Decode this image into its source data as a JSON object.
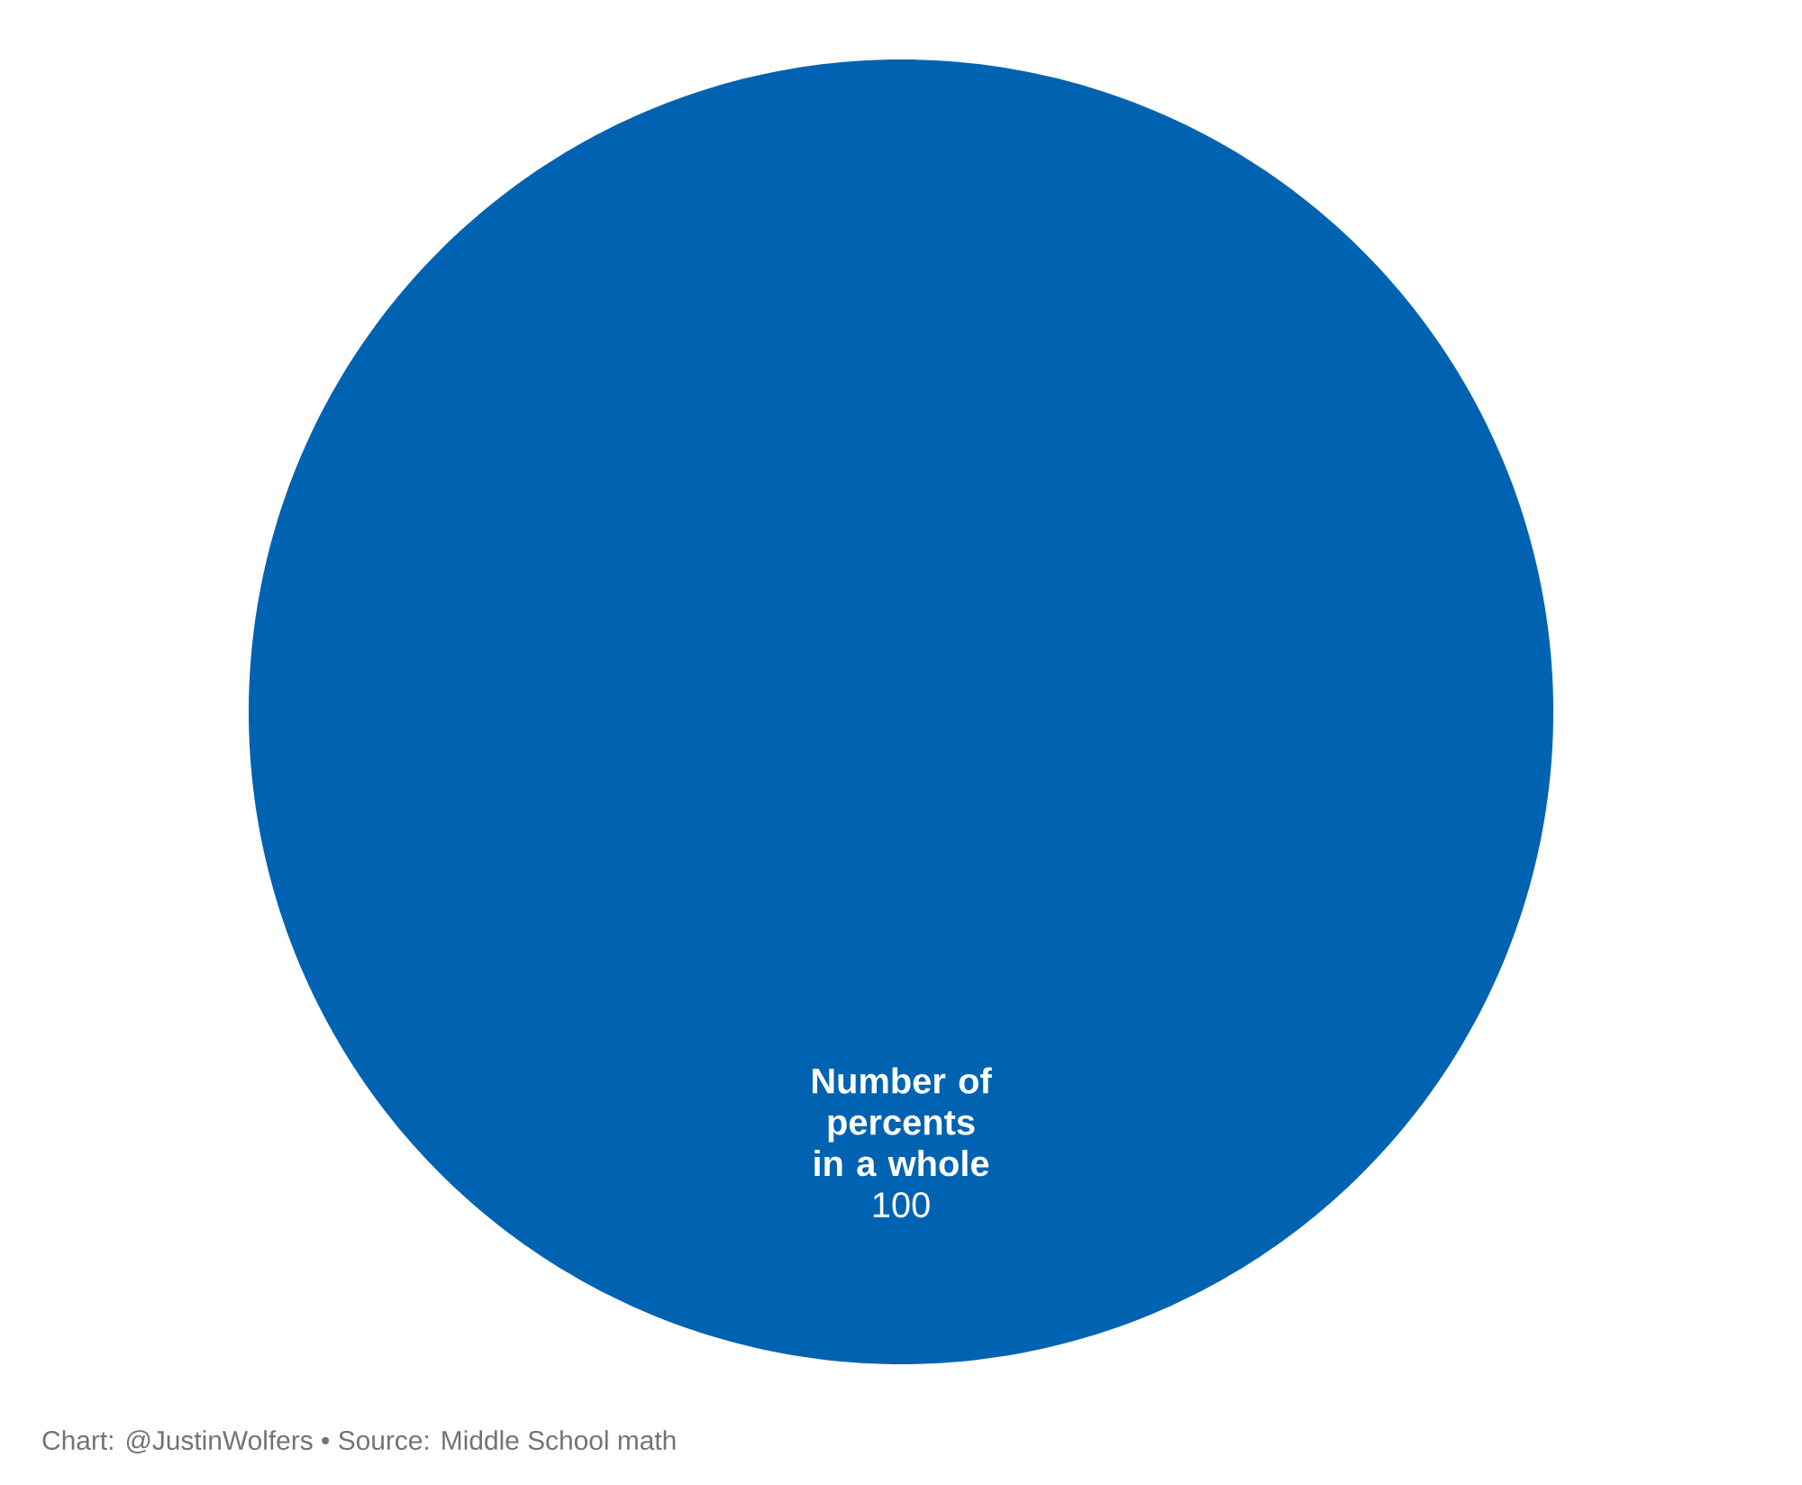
{
  "chart_data": {
    "type": "pie",
    "categories": [
      "Number of percents in a whole"
    ],
    "values": [
      100
    ],
    "value_labels": [
      "100"
    ],
    "colors": [
      "#0063b1"
    ],
    "annotations": [
      "Chart: @JustinWolfers • Source: Middle School math"
    ]
  }
}
